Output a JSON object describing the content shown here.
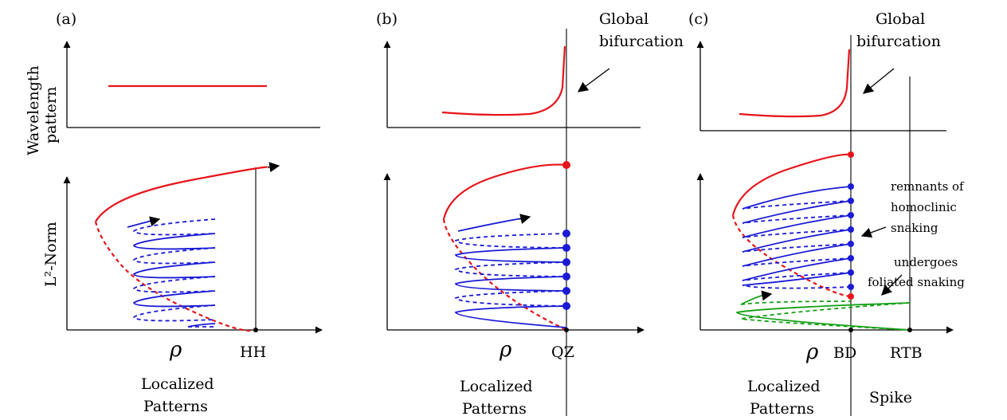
{
  "panels": [
    {
      "id": "a",
      "label": "(a)",
      "param_symbol": "ρ",
      "point_label": "HH",
      "regions": [
        {
          "line1": "Localized",
          "line2": "Patterns"
        }
      ],
      "annotations": []
    },
    {
      "id": "b",
      "label": "(b)",
      "param_symbol": "ρ",
      "point_label": "QZ",
      "regions": [
        {
          "line1": "Localized",
          "line2": "Patterns"
        }
      ],
      "annotations": [
        {
          "line1": "Global",
          "line2": "bifurcation"
        }
      ]
    },
    {
      "id": "c",
      "label": "(c)",
      "param_symbol": "ρ",
      "point_labels": [
        "BD",
        "RTB"
      ],
      "regions": [
        {
          "line1": "Localized",
          "line2": "Patterns"
        },
        {
          "line1": "Spike"
        }
      ],
      "annotations": [
        {
          "line1": "Global",
          "line2": "bifurcation"
        },
        {
          "line1": "remnants of",
          "line2": "homoclinic",
          "line3": "snaking"
        },
        {
          "line1": "undergoes",
          "line2": "foliated snaking"
        }
      ]
    }
  ],
  "y_axis_labels": {
    "top_line1": "Wavelength",
    "top_line2": "pattern",
    "bottom": "L²-Norm"
  },
  "colors": {
    "localized_branch": "#e8141b",
    "snaking_branches": "#1a1ad6",
    "spike_branch": "#14a014",
    "axes": "#000000"
  }
}
